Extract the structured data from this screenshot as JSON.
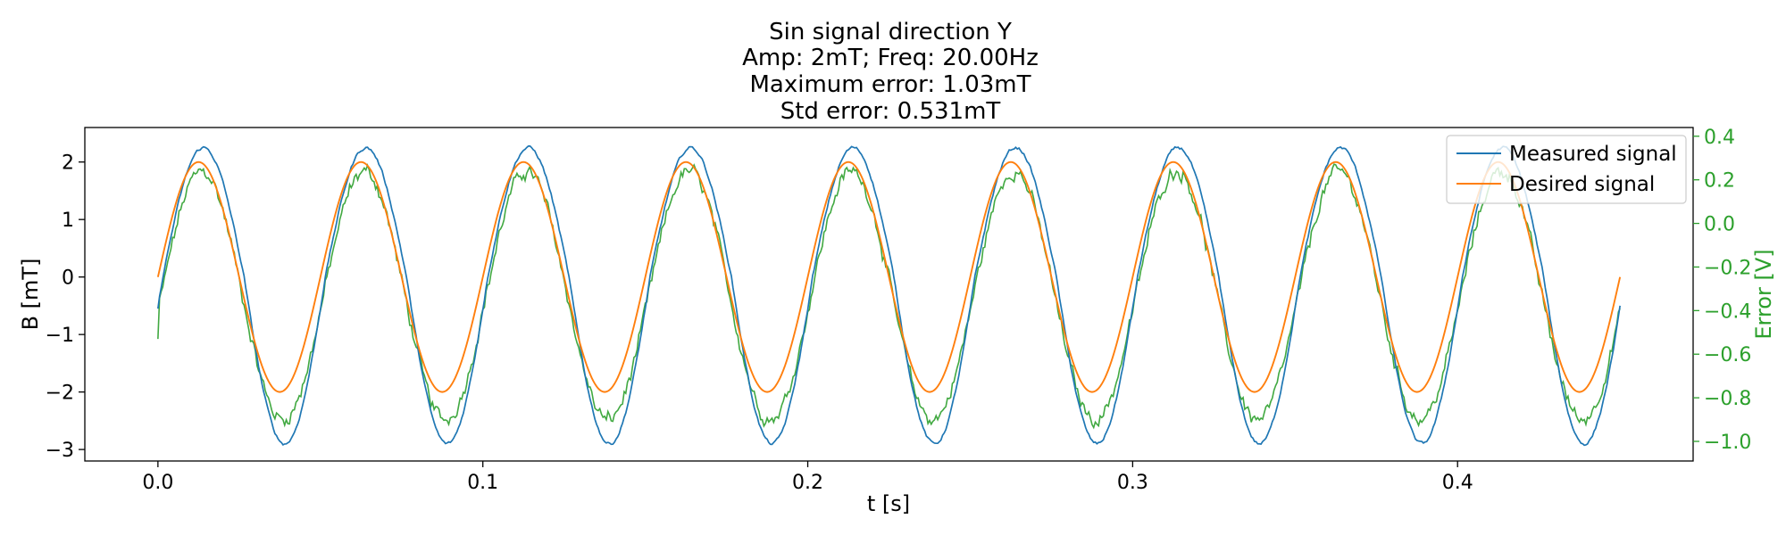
{
  "chart_data": {
    "type": "line",
    "title_lines": [
      "Sin signal direction Y",
      "Amp: 2mT; Freq: 20.00Hz",
      "Maximum error: 1.03mT",
      "Std error: 0.531mT"
    ],
    "xlabel": "t [s]",
    "ylabel": "B [mT]",
    "y2label": "Error [V]",
    "xlim": [
      -0.0225,
      0.4725
    ],
    "ylim": [
      -3.2,
      2.6
    ],
    "y2lim": [
      -1.09,
      0.44
    ],
    "x_ticks": [
      0.0,
      0.1,
      0.2,
      0.3,
      0.4
    ],
    "x_tick_labels": [
      "0.0",
      "0.1",
      "0.2",
      "0.3",
      "0.4"
    ],
    "y_ticks": [
      -3,
      -2,
      -1,
      0,
      1,
      2
    ],
    "y_tick_labels": [
      "−3",
      "−2",
      "−1",
      "0",
      "1",
      "2"
    ],
    "y2_ticks": [
      -1.0,
      -0.8,
      -0.6,
      -0.4,
      -0.2,
      0.0,
      0.2,
      0.4
    ],
    "y2_tick_labels": [
      "−1.0",
      "−0.8",
      "−0.6",
      "−0.4",
      "−0.2",
      "0.0",
      "0.2",
      "0.4"
    ],
    "grid": false,
    "legend_position": "top-right",
    "series": [
      {
        "name": "Measured signal",
        "axis": "left",
        "color": "#1f77b4",
        "description": "Sinusoid, amplitude about 2.6 mT (peaks near 2.25, troughs near -2.9), frequency 20 Hz, lagging desired by about 0.0015 s, with small high-frequency noise",
        "x_start": 0.0,
        "x_end": 0.45,
        "amplitude_upper": 2.25,
        "amplitude_lower": 2.9,
        "frequency_hz": 20,
        "phase_lag_s": 0.0015
      },
      {
        "name": "Desired signal",
        "axis": "left",
        "color": "#ff7f0e",
        "x_start": 0.0,
        "x_end": 0.45,
        "amplitude": 2.0,
        "frequency_hz": 20,
        "offset": 0.0
      },
      {
        "name": "",
        "axis": "right",
        "color": "#2ca02c",
        "x_start": 0.0,
        "x_end": 0.45,
        "center": -0.33,
        "amplitude": 0.57,
        "frequency_hz": 20,
        "phase_lag_s": 0.001,
        "noise": 0.045,
        "start_value": -0.53
      }
    ]
  }
}
